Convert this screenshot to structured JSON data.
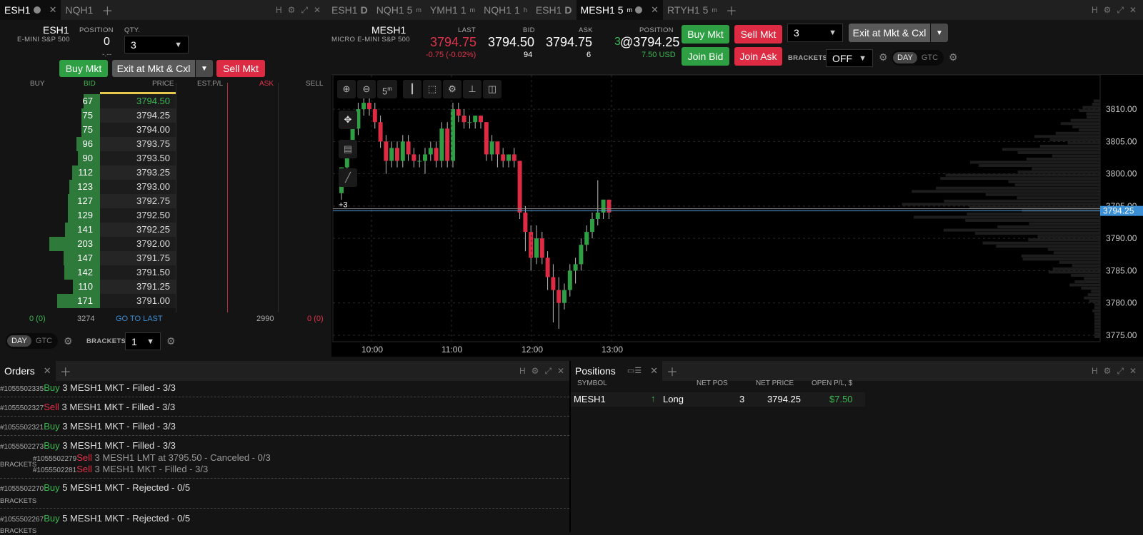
{
  "left_tabs": [
    {
      "label": "ESH1",
      "active": true
    },
    {
      "label": "NQH1",
      "active": false
    }
  ],
  "right_tabs": [
    {
      "label": "ESH1",
      "suffix": "D"
    },
    {
      "label": "NQH1",
      "suffix": "5",
      "sup": "m"
    },
    {
      "label": "YMH1",
      "suffix": "1",
      "sup": "m"
    },
    {
      "label": "NQH1",
      "suffix": "1",
      "sup": "h"
    },
    {
      "label": "ESH1",
      "suffix": "D"
    },
    {
      "label": "MESH1",
      "suffix": "5",
      "sup": "m",
      "active": true
    },
    {
      "label": "RTYH1",
      "suffix": "5",
      "sup": "m"
    }
  ],
  "dom": {
    "symbol": "ESH1",
    "description": "E-MINI S&P 500",
    "position_label": "POSITION",
    "position": "0",
    "position_sub": "-.--",
    "qty_label": "QTY.",
    "qty": "3",
    "buy_mkt": "Buy Mkt",
    "exit_mkt": "Exit at Mkt & Cxl",
    "sell_mkt": "Sell Mkt",
    "headers": {
      "buy": "BUY",
      "bid": "BID",
      "price": "PRICE",
      "est_pl": "EST.P/L",
      "ask": "ASK",
      "sell": "SELL"
    },
    "rows": [
      {
        "bid": "67",
        "price": "3794.50",
        "bar": 0.33,
        "hl": true
      },
      {
        "bid": "75",
        "price": "3794.25",
        "bar": 0.37
      },
      {
        "bid": "75",
        "price": "3794.00",
        "bar": 0.37
      },
      {
        "bid": "96",
        "price": "3793.75",
        "bar": 0.47
      },
      {
        "bid": "90",
        "price": "3793.50",
        "bar": 0.44
      },
      {
        "bid": "112",
        "price": "3793.25",
        "bar": 0.55
      },
      {
        "bid": "123",
        "price": "3793.00",
        "bar": 0.61
      },
      {
        "bid": "127",
        "price": "3792.75",
        "bar": 0.63
      },
      {
        "bid": "129",
        "price": "3792.50",
        "bar": 0.64
      },
      {
        "bid": "141",
        "price": "3792.25",
        "bar": 0.69
      },
      {
        "bid": "203",
        "price": "3792.00",
        "bar": 1.0
      },
      {
        "bid": "147",
        "price": "3791.75",
        "bar": 0.72
      },
      {
        "bid": "142",
        "price": "3791.50",
        "bar": 0.7
      },
      {
        "bid": "110",
        "price": "3791.25",
        "bar": 0.54
      },
      {
        "bid": "171",
        "price": "3791.00",
        "bar": 0.84
      }
    ],
    "footer": {
      "left": "0 (0)",
      "bid_total": "3274",
      "go_to_last": "GO TO LAST",
      "ask_total": "2990",
      "right": "0 (0)"
    },
    "day": "DAY",
    "gtc": "GTC",
    "brackets_label": "BRACKETS",
    "brackets": "1"
  },
  "chart_header": {
    "symbol": "MESH1",
    "description": "MICRO E-MINI S&P 500",
    "last_label": "LAST",
    "last": "3794.75",
    "change": "-0.75 (-0.02%)",
    "bid_label": "BID",
    "bid": "3794.50",
    "bid_size": "94",
    "ask_label": "ASK",
    "ask": "3794.75",
    "ask_size": "6",
    "position_label": "POSITION",
    "position_qty": "3",
    "position_price": "@3794.25",
    "position_pl": "7.50 USD",
    "buy_mkt": "Buy Mkt",
    "sell_mkt": "Sell Mkt",
    "join_bid": "Join Bid",
    "join_ask": "Join Ask",
    "qty": "3",
    "exit_mkt": "Exit at Mkt & Cxl",
    "brackets_label": "BRACKETS",
    "brackets": "OFF",
    "day": "DAY",
    "gtc": "GTC"
  },
  "chart_toolbar": {
    "interval": "5",
    "interval_sup": "m"
  },
  "chart_data": {
    "type": "candlestick",
    "x_ticks": [
      "10:00",
      "11:00",
      "12:00",
      "13:00"
    ],
    "y_ticks": [
      "3810.00",
      "3805.00",
      "3800.00",
      "3795.00",
      "3790.00",
      "3785.00",
      "3780.00",
      "3775.00"
    ],
    "ylim": [
      3774,
      3812
    ],
    "current_price": "3794.25",
    "position_marker": "+3",
    "candles": [
      [
        3797,
        3801,
        3796,
        3801
      ],
      [
        3801,
        3805,
        3800,
        3804
      ],
      [
        3804,
        3808,
        3803,
        3807
      ],
      [
        3807,
        3811,
        3806,
        3810
      ],
      [
        3810,
        3812,
        3809,
        3811
      ],
      [
        3811,
        3812,
        3809,
        3810
      ],
      [
        3810,
        3811,
        3807,
        3808
      ],
      [
        3808,
        3809,
        3804,
        3805
      ],
      [
        3805,
        3806,
        3800,
        3802
      ],
      [
        3802,
        3805,
        3801,
        3804
      ],
      [
        3804,
        3805,
        3801,
        3802
      ],
      [
        3802,
        3806,
        3801,
        3805
      ],
      [
        3805,
        3806,
        3802,
        3803
      ],
      [
        3803,
        3804,
        3801,
        3802
      ],
      [
        3802,
        3803,
        3801,
        3802
      ],
      [
        3802,
        3804,
        3800,
        3803
      ],
      [
        3803,
        3805,
        3802,
        3804
      ],
      [
        3804,
        3805,
        3801,
        3802
      ],
      [
        3802,
        3808,
        3801,
        3807
      ],
      [
        3807,
        3808,
        3801,
        3802
      ],
      [
        3802,
        3811,
        3801,
        3810
      ],
      [
        3810,
        3811,
        3808,
        3809
      ],
      [
        3809,
        3810,
        3807,
        3808
      ],
      [
        3808,
        3809,
        3807,
        3808
      ],
      [
        3808,
        3809,
        3807,
        3809
      ],
      [
        3809,
        3809,
        3807,
        3808
      ],
      [
        3808,
        3808,
        3802,
        3803
      ],
      [
        3803,
        3806,
        3802,
        3805
      ],
      [
        3805,
        3805,
        3801,
        3803
      ],
      [
        3803,
        3804,
        3801,
        3802
      ],
      [
        3802,
        3803,
        3801,
        3803
      ],
      [
        3803,
        3804,
        3801,
        3802
      ],
      [
        3802,
        3802,
        3793,
        3794
      ],
      [
        3794,
        3795,
        3788,
        3791
      ],
      [
        3791,
        3792,
        3785,
        3787
      ],
      [
        3787,
        3792,
        3786,
        3790
      ],
      [
        3790,
        3791,
        3786,
        3787
      ],
      [
        3787,
        3788,
        3782,
        3784
      ],
      [
        3784,
        3786,
        3777,
        3782
      ],
      [
        3782,
        3784,
        3776,
        3780
      ],
      [
        3780,
        3783,
        3779,
        3782
      ],
      [
        3782,
        3786,
        3781,
        3785
      ],
      [
        3785,
        3787,
        3783,
        3786
      ],
      [
        3786,
        3790,
        3785,
        3789
      ],
      [
        3789,
        3792,
        3788,
        3791
      ],
      [
        3791,
        3794,
        3790,
        3793
      ],
      [
        3793,
        3799,
        3792,
        3794
      ],
      [
        3794,
        3796,
        3793,
        3796
      ],
      [
        3796,
        3796,
        3793,
        3794
      ]
    ]
  },
  "orders": {
    "title": "Orders",
    "items": [
      {
        "id": "#1055502335",
        "side": "Buy",
        "text": "3 MESH1 MKT - Filled - 3/3"
      },
      {
        "id": "#1055502327",
        "side": "Sell",
        "text": "3 MESH1 MKT - Filled - 3/3"
      },
      {
        "id": "#1055502321",
        "side": "Buy",
        "text": "3 MESH1 MKT - Filled - 3/3"
      },
      {
        "id": "#1055502273",
        "side": "Buy",
        "text": "3 MESH1 MKT - Filled - 3/3"
      },
      {
        "id": "#1055502270",
        "side": "Buy",
        "text": "5 MESH1 MKT - Rejected - 0/5"
      },
      {
        "id": "#1055502267",
        "side": "Buy",
        "text": "5 MESH1 MKT - Rejected - 0/5"
      }
    ],
    "brackets_label": "BRACKETS",
    "bracket_children": [
      {
        "id": "#1055502279",
        "side": "Sell",
        "text": "3 MESH1 LMT at 3795.50 - Canceled - 0/3"
      },
      {
        "id": "#1055502281",
        "side": "Sell",
        "text": "3 MESH1 MKT - Filled - 3/3"
      }
    ]
  },
  "positions": {
    "title": "Positions",
    "headers": {
      "symbol": "SYMBOL",
      "net_pos": "NET POS",
      "net_price": "NET PRICE",
      "open_pl": "OPEN P/L, $"
    },
    "row": {
      "symbol": "MESH1",
      "side": "Long",
      "net_pos": "3",
      "net_price": "3794.25",
      "open_pl": "$7.50"
    }
  },
  "colors": {
    "green": "#2ea043",
    "red": "#dc2b43",
    "accent_blue": "#3a8fd6"
  }
}
